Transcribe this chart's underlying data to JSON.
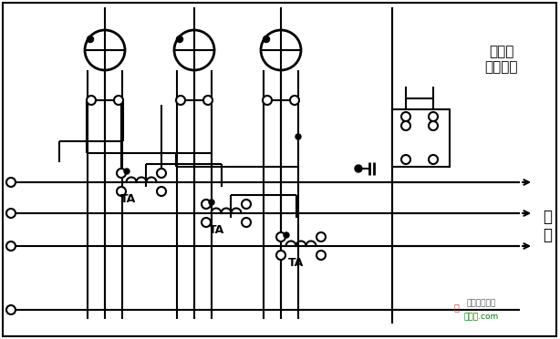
{
  "label_meter": "三相四\n线电能表",
  "label_load": "负\n荷",
  "label_TA": "TA",
  "bg_color": "#ffffff",
  "line_color": "#000000",
  "fig_width": 6.14,
  "fig_height": 3.72,
  "dpi": 100
}
